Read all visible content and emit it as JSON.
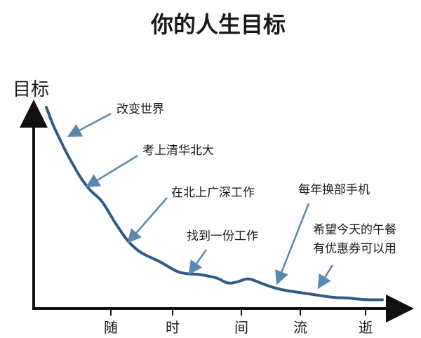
{
  "chart_data": {
    "type": "line",
    "title": "你的人生目标",
    "ylabel": "目标",
    "xlabel": "",
    "x_ticks": [
      "随",
      "时",
      "间",
      "流",
      "逝"
    ],
    "ylim": [
      0,
      100
    ],
    "xlim": [
      0,
      100
    ],
    "series": [
      {
        "x": [
          0,
          2,
          4,
          6,
          8,
          10,
          13,
          16,
          18,
          20,
          22,
          24,
          27,
          30,
          33,
          36,
          39,
          42,
          45,
          48,
          51,
          54,
          57,
          60,
          63,
          66,
          70,
          74,
          78,
          82,
          86,
          90,
          94,
          98,
          100
        ],
        "y": [
          100,
          91,
          84,
          77,
          71,
          65,
          58,
          54,
          49,
          43,
          38,
          33,
          28,
          25,
          23,
          20,
          17,
          16,
          16,
          15,
          14,
          11,
          12,
          14,
          12,
          10,
          8,
          7,
          6,
          5,
          4,
          4,
          3,
          3,
          3
        ]
      }
    ],
    "annotations": [
      {
        "text": "改变世界",
        "x": 5,
        "y": 93
      },
      {
        "text": "考上清华北大",
        "x": 16,
        "y": 69
      },
      {
        "text": "在北上广深工作",
        "x": 28,
        "y": 38
      },
      {
        "text": "找到一份工作",
        "x": 45,
        "y": 19
      },
      {
        "text": "每年换部手机",
        "x": 66,
        "y": 14
      },
      {
        "text": "希望今天的午餐",
        "x": 79,
        "y": 11
      },
      {
        "text": "有优惠券可以用",
        "x": 79,
        "y": 11
      }
    ]
  }
}
